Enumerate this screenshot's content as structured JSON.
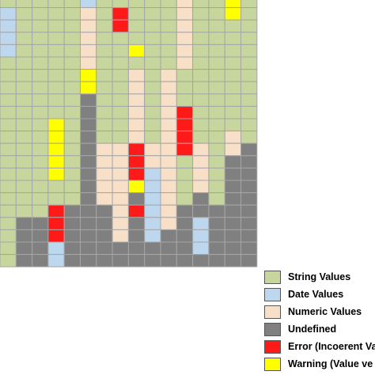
{
  "colors": {
    "string": "#c6d69c",
    "date": "#bdd7ee",
    "numeric": "#f8e0c8",
    "undefined": "#808080",
    "error": "#ff1a1a",
    "warning": "#ffff00",
    "gridline": "#a6a6a6"
  },
  "grid": {
    "code_key": {
      "S": "string",
      "D": "date",
      "N": "numeric",
      "U": "undefined",
      "E": "error",
      "W": "warning"
    },
    "rows": [
      "SSSSSDSSSSSNSSWS",
      "DSSSSNSESSSNSSWS",
      "DSSSSNSESSSNSSSS",
      "DSSSSNSSSSSNSSSS",
      "DSSSSNSSWSSNSSSS",
      "SSSSSNSSSSSNSSSS",
      "SSSSSWSSNSNSSSSS",
      "SSSSSWSSNSNSSSSS",
      "SSSSSUSSNSNSSSSS",
      "SSSSSUSSNSNESSSS",
      "SSSWSUSSNSNESSSS",
      "SSSWSUSSNSNESSNS",
      "SSSWSUNNENNENSNU",
      "SSSWSUNNENNSNSUU",
      "SSSWSUNNEDNSNSUU",
      "SSSSSUNNWDNSNSUU",
      "SSSSSUNNUDNSUSUU",
      "SSSEUUUNEDNUUUUU",
      "SUUEUUUNUDNUDUUU",
      "SUUEUUUNUDUUDUUU",
      "SUUDUUUUUUUUDUUU",
      "SUUDUUUUUUUUUUUU"
    ]
  },
  "legend": {
    "items": [
      {
        "key": "string",
        "label": "String Values"
      },
      {
        "key": "date",
        "label": "Date Values"
      },
      {
        "key": "numeric",
        "label": "Numeric Values"
      },
      {
        "key": "undefined",
        "label": "Undefined"
      },
      {
        "key": "error",
        "label": "Error (Incoerent Va"
      },
      {
        "key": "warning",
        "label": "Warning (Value ve"
      }
    ]
  }
}
